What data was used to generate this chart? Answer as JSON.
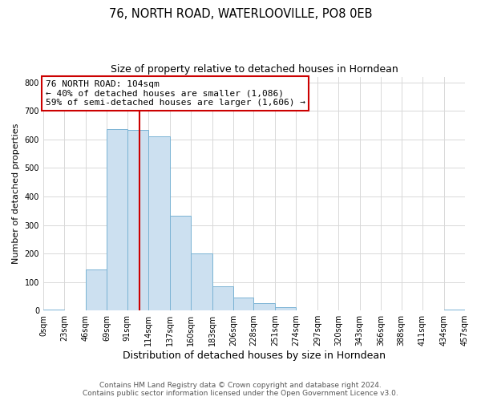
{
  "title": "76, NORTH ROAD, WATERLOOVILLE, PO8 0EB",
  "subtitle": "Size of property relative to detached houses in Horndean",
  "xlabel": "Distribution of detached houses by size in Horndean",
  "ylabel": "Number of detached properties",
  "bar_edges": [
    0,
    23,
    46,
    69,
    91,
    114,
    137,
    160,
    183,
    206,
    228,
    251,
    274,
    297,
    320,
    343,
    366,
    388,
    411,
    434,
    457
  ],
  "bar_heights": [
    3,
    0,
    143,
    635,
    632,
    610,
    333,
    200,
    84,
    46,
    27,
    12,
    0,
    0,
    0,
    0,
    0,
    0,
    0,
    3
  ],
  "tick_labels": [
    "0sqm",
    "23sqm",
    "46sqm",
    "69sqm",
    "91sqm",
    "114sqm",
    "137sqm",
    "160sqm",
    "183sqm",
    "206sqm",
    "228sqm",
    "251sqm",
    "274sqm",
    "297sqm",
    "320sqm",
    "343sqm",
    "366sqm",
    "388sqm",
    "411sqm",
    "434sqm",
    "457sqm"
  ],
  "bar_color": "#cce0f0",
  "bar_edge_color": "#7ab3d4",
  "vline_x": 104,
  "vline_color": "#cc0000",
  "annotation_line1": "76 NORTH ROAD: 104sqm",
  "annotation_line2": "← 40% of detached houses are smaller (1,086)",
  "annotation_line3": "59% of semi-detached houses are larger (1,606) →",
  "annotation_box_edge": "#cc0000",
  "ylim": [
    0,
    820
  ],
  "yticks": [
    0,
    100,
    200,
    300,
    400,
    500,
    600,
    700,
    800
  ],
  "footer_line1": "Contains HM Land Registry data © Crown copyright and database right 2024.",
  "footer_line2": "Contains public sector information licensed under the Open Government Licence v3.0.",
  "background_color": "#ffffff",
  "grid_color": "#d8d8d8",
  "title_fontsize": 10.5,
  "subtitle_fontsize": 9,
  "xlabel_fontsize": 9,
  "ylabel_fontsize": 8,
  "tick_fontsize": 7,
  "annotation_fontsize": 8,
  "footer_fontsize": 6.5
}
